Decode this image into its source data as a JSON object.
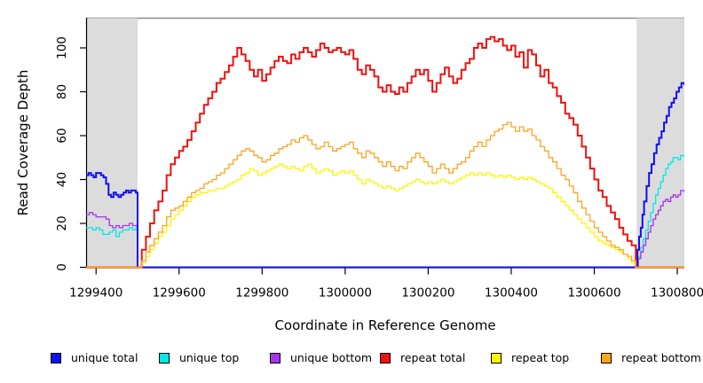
{
  "figure": {
    "xlabel": "Coordinate in Reference Genome",
    "ylabel": "Read Coverage Depth",
    "x_ticks": [
      1299400,
      1299600,
      1299800,
      1300000,
      1300200,
      1300400,
      1300600,
      1300800
    ],
    "y_ticks": [
      0,
      20,
      40,
      60,
      80,
      100
    ],
    "colors": {
      "shade": "#DCDCDC",
      "box_top": "#8A8A8A",
      "axis": "#000000"
    }
  },
  "chart_data": {
    "type": "line",
    "title": "",
    "xlabel": "Coordinate in Reference Genome",
    "ylabel": "Read Coverage Depth",
    "xlim": [
      1299376,
      1300817
    ],
    "ylim": [
      0,
      113
    ],
    "x_tick_step": 200,
    "grid": false,
    "legend_position": "bottom",
    "shaded_regions": [
      [
        1299376,
        1299500
      ],
      [
        1300700,
        1300817
      ]
    ],
    "draw_order": [
      1,
      2,
      0,
      3,
      4,
      5
    ],
    "series": [
      {
        "name": "unique total",
        "color": "#1010EE",
        "line_width": 2,
        "points": [
          [
            1299376,
            42
          ],
          [
            1299382,
            43
          ],
          [
            1299388,
            42
          ],
          [
            1299394,
            41
          ],
          [
            1299400,
            43
          ],
          [
            1299406,
            43
          ],
          [
            1299412,
            42
          ],
          [
            1299418,
            41
          ],
          [
            1299424,
            38
          ],
          [
            1299430,
            33
          ],
          [
            1299436,
            32
          ],
          [
            1299442,
            34
          ],
          [
            1299448,
            33
          ],
          [
            1299454,
            32
          ],
          [
            1299460,
            33
          ],
          [
            1299466,
            34
          ],
          [
            1299472,
            35
          ],
          [
            1299478,
            34
          ],
          [
            1299484,
            35
          ],
          [
            1299490,
            35
          ],
          [
            1299496,
            34
          ],
          [
            1299500,
            0
          ],
          [
            1300700,
            0
          ],
          [
            1300704,
            8
          ],
          [
            1300708,
            14
          ],
          [
            1300712,
            18
          ],
          [
            1300716,
            24
          ],
          [
            1300720,
            30
          ],
          [
            1300726,
            37
          ],
          [
            1300732,
            43
          ],
          [
            1300738,
            47
          ],
          [
            1300744,
            52
          ],
          [
            1300750,
            56
          ],
          [
            1300756,
            59
          ],
          [
            1300762,
            62
          ],
          [
            1300768,
            66
          ],
          [
            1300774,
            69
          ],
          [
            1300780,
            73
          ],
          [
            1300786,
            75
          ],
          [
            1300792,
            77
          ],
          [
            1300798,
            80
          ],
          [
            1300804,
            82
          ],
          [
            1300810,
            84
          ],
          [
            1300817,
            83
          ]
        ]
      },
      {
        "name": "unique top",
        "color": "#00E8E8",
        "line_width": 1.3,
        "points": [
          [
            1299376,
            18
          ],
          [
            1299384,
            18
          ],
          [
            1299392,
            17
          ],
          [
            1299400,
            18
          ],
          [
            1299408,
            17
          ],
          [
            1299416,
            15
          ],
          [
            1299424,
            15
          ],
          [
            1299432,
            16
          ],
          [
            1299440,
            17
          ],
          [
            1299448,
            14
          ],
          [
            1299456,
            16
          ],
          [
            1299464,
            17
          ],
          [
            1299472,
            17
          ],
          [
            1299480,
            18
          ],
          [
            1299488,
            17
          ],
          [
            1299496,
            18
          ],
          [
            1299500,
            0
          ],
          [
            1300700,
            0
          ],
          [
            1300706,
            5
          ],
          [
            1300712,
            9
          ],
          [
            1300718,
            13
          ],
          [
            1300724,
            17
          ],
          [
            1300730,
            21
          ],
          [
            1300736,
            25
          ],
          [
            1300742,
            29
          ],
          [
            1300748,
            33
          ],
          [
            1300754,
            36
          ],
          [
            1300760,
            39
          ],
          [
            1300766,
            42
          ],
          [
            1300772,
            45
          ],
          [
            1300778,
            47
          ],
          [
            1300784,
            48
          ],
          [
            1300790,
            50
          ],
          [
            1300796,
            50
          ],
          [
            1300802,
            49
          ],
          [
            1300808,
            51
          ],
          [
            1300817,
            50
          ]
        ]
      },
      {
        "name": "unique bottom",
        "color": "#A734EB",
        "line_width": 1.3,
        "points": [
          [
            1299376,
            24
          ],
          [
            1299384,
            25
          ],
          [
            1299392,
            24
          ],
          [
            1299400,
            23
          ],
          [
            1299408,
            23
          ],
          [
            1299416,
            23
          ],
          [
            1299424,
            22
          ],
          [
            1299432,
            19
          ],
          [
            1299440,
            18
          ],
          [
            1299448,
            19
          ],
          [
            1299456,
            18
          ],
          [
            1299464,
            19
          ],
          [
            1299472,
            19
          ],
          [
            1299480,
            20
          ],
          [
            1299488,
            19
          ],
          [
            1299496,
            19
          ],
          [
            1299500,
            0
          ],
          [
            1300700,
            0
          ],
          [
            1300706,
            4
          ],
          [
            1300712,
            7
          ],
          [
            1300718,
            10
          ],
          [
            1300724,
            13
          ],
          [
            1300730,
            16
          ],
          [
            1300736,
            19
          ],
          [
            1300742,
            22
          ],
          [
            1300748,
            24
          ],
          [
            1300754,
            26
          ],
          [
            1300760,
            28
          ],
          [
            1300766,
            30
          ],
          [
            1300772,
            31
          ],
          [
            1300778,
            30
          ],
          [
            1300784,
            32
          ],
          [
            1300790,
            33
          ],
          [
            1300796,
            32
          ],
          [
            1300802,
            33
          ],
          [
            1300808,
            35
          ],
          [
            1300817,
            34
          ]
        ]
      },
      {
        "name": "repeat total",
        "color": "#EE1111",
        "line_width": 2,
        "x_start": 1299500,
        "x_step": 10,
        "pad_zero": [
          1299376,
          1300817
        ],
        "y": [
          0,
          8,
          14,
          20,
          26,
          30,
          35,
          42,
          47,
          50,
          53,
          55,
          58,
          62,
          66,
          70,
          74,
          77,
          80,
          84,
          86,
          89,
          92,
          96,
          100,
          97,
          94,
          90,
          87,
          90,
          85,
          88,
          91,
          94,
          96,
          94,
          93,
          97,
          95,
          98,
          100,
          98,
          96,
          99,
          102,
          100,
          98,
          99,
          100,
          98,
          97,
          99,
          95,
          90,
          88,
          92,
          90,
          87,
          82,
          80,
          83,
          80,
          79,
          82,
          80,
          84,
          87,
          90,
          88,
          90,
          85,
          80,
          84,
          88,
          91,
          87,
          84,
          86,
          90,
          93,
          95,
          100,
          102,
          100,
          104,
          105,
          103,
          104,
          101,
          99,
          101,
          96,
          98,
          91,
          99,
          97,
          92,
          87,
          90,
          84,
          82,
          78,
          75,
          70,
          68,
          65,
          60,
          55,
          50,
          45,
          40,
          35,
          32,
          28,
          25,
          22,
          18,
          15,
          12,
          10,
          0
        ]
      },
      {
        "name": "repeat top",
        "color": "#FFF500",
        "line_width": 1.3,
        "x_start": 1299500,
        "x_step": 10,
        "pad_zero": [
          1299376,
          1300817
        ],
        "y": [
          0,
          2,
          5,
          8,
          11,
          14,
          16,
          19,
          22,
          24,
          26,
          28,
          30,
          32,
          33,
          34,
          34,
          35,
          35,
          36,
          36,
          37,
          38,
          39,
          40,
          42,
          43,
          45,
          44,
          42,
          43,
          44,
          45,
          46,
          47,
          46,
          45,
          46,
          45,
          44,
          46,
          47,
          45,
          43,
          44,
          45,
          44,
          42,
          43,
          44,
          43,
          44,
          42,
          40,
          38,
          40,
          39,
          38,
          37,
          36,
          37,
          36,
          35,
          36,
          37,
          38,
          39,
          40,
          39,
          38,
          39,
          38,
          39,
          40,
          39,
          38,
          39,
          40,
          41,
          42,
          43,
          42,
          43,
          42,
          43,
          42,
          41,
          42,
          41,
          42,
          41,
          40,
          41,
          40,
          41,
          40,
          39,
          38,
          37,
          36,
          34,
          32,
          30,
          28,
          26,
          24,
          22,
          20,
          18,
          16,
          14,
          12,
          11,
          10,
          9,
          8,
          7,
          6,
          4,
          2,
          0
        ]
      },
      {
        "name": "repeat bottom",
        "color": "#FFA41E",
        "line_width": 1.3,
        "x_start": 1299500,
        "x_step": 10,
        "pad_zero": [
          1299376,
          1300817
        ],
        "y": [
          0,
          3,
          7,
          10,
          13,
          16,
          19,
          23,
          26,
          27,
          28,
          30,
          32,
          34,
          35,
          36,
          38,
          39,
          40,
          42,
          43,
          45,
          47,
          49,
          51,
          53,
          54,
          53,
          51,
          50,
          48,
          49,
          51,
          52,
          54,
          55,
          56,
          58,
          57,
          59,
          60,
          58,
          56,
          54,
          55,
          57,
          55,
          53,
          54,
          55,
          56,
          57,
          54,
          52,
          50,
          53,
          52,
          50,
          48,
          46,
          48,
          46,
          44,
          46,
          45,
          48,
          50,
          52,
          50,
          48,
          46,
          43,
          45,
          47,
          45,
          43,
          45,
          47,
          48,
          50,
          53,
          55,
          57,
          55,
          58,
          60,
          62,
          63,
          65,
          66,
          64,
          62,
          64,
          62,
          63,
          60,
          58,
          55,
          53,
          50,
          48,
          45,
          42,
          40,
          37,
          34,
          30,
          27,
          24,
          21,
          18,
          16,
          14,
          12,
          10,
          9,
          8,
          6,
          5,
          3,
          0
        ]
      }
    ]
  }
}
